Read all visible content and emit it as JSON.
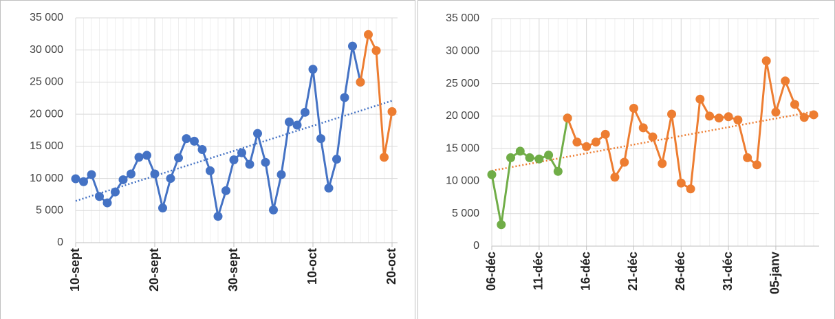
{
  "chart_data": [
    {
      "type": "line",
      "categories": [
        "10-sept",
        null,
        null,
        null,
        null,
        null,
        null,
        null,
        null,
        null,
        "20-sept",
        null,
        null,
        null,
        null,
        null,
        null,
        null,
        null,
        null,
        "30-sept",
        null,
        null,
        null,
        null,
        null,
        null,
        null,
        null,
        null,
        "10-oct",
        null,
        null,
        null,
        null,
        null,
        null,
        null,
        null,
        null,
        "20-oct"
      ],
      "series": [
        {
          "color": "#4472c4",
          "values": [
            9950,
            9500,
            10600,
            7200,
            6200,
            7900,
            9800,
            10700,
            13300,
            13600,
            10700,
            5400,
            10000,
            13200,
            16200,
            15800,
            14500,
            11200,
            4100,
            8100,
            12900,
            14000,
            12200,
            17000,
            12500,
            5100,
            10600,
            18800,
            18300,
            20300,
            27000,
            16200,
            8500,
            13000,
            22600,
            30600,
            25000,
            null,
            null,
            null,
            null
          ]
        },
        {
          "color": "#ed7d31",
          "values": [
            null,
            null,
            null,
            null,
            null,
            null,
            null,
            null,
            null,
            null,
            null,
            null,
            null,
            null,
            null,
            null,
            null,
            null,
            null,
            null,
            null,
            null,
            null,
            null,
            null,
            null,
            null,
            null,
            null,
            null,
            null,
            null,
            null,
            null,
            null,
            null,
            25000,
            32400,
            29900,
            13300,
            20400
          ]
        }
      ],
      "trendline": {
        "color": "#4472c4",
        "values": [
          6500,
          22100
        ]
      },
      "ylim": [
        0,
        35000
      ],
      "yticks": [
        {
          "value": 0,
          "label": "0"
        },
        {
          "value": 5000,
          "label": "5 000"
        },
        {
          "value": 10000,
          "label": "10 000"
        },
        {
          "value": 15000,
          "label": "15 000"
        },
        {
          "value": 20000,
          "label": "20 000"
        },
        {
          "value": 25000,
          "label": "25 000"
        },
        {
          "value": 30000,
          "label": "30 000"
        },
        {
          "value": 35000,
          "label": "35 000"
        }
      ],
      "grid": true
    },
    {
      "type": "line",
      "categories": [
        "06-déc",
        null,
        null,
        null,
        null,
        "11-déc",
        null,
        null,
        null,
        null,
        "16-déc",
        null,
        null,
        null,
        null,
        "21-déc",
        null,
        null,
        null,
        null,
        "26-déc",
        null,
        null,
        null,
        null,
        "31-déc",
        null,
        null,
        null,
        null,
        "05-janv",
        null,
        null,
        null,
        null
      ],
      "series": [
        {
          "color": "#70ad47",
          "values": [
            11000,
            3300,
            13600,
            14600,
            13600,
            13400,
            14000,
            11500,
            19700,
            null,
            null,
            null,
            null,
            null,
            null,
            null,
            null,
            null,
            null,
            null,
            null,
            null,
            null,
            null,
            null,
            null,
            null,
            null,
            null,
            null,
            null,
            null,
            null,
            null,
            null
          ]
        },
        {
          "color": "#ed7d31",
          "values": [
            null,
            null,
            null,
            null,
            null,
            null,
            null,
            null,
            19700,
            16000,
            15300,
            16000,
            17200,
            10600,
            12900,
            21200,
            18200,
            16800,
            12700,
            20300,
            9700,
            8800,
            22600,
            20000,
            19700,
            19900,
            19400,
            13600,
            12500,
            28500,
            20600,
            25400,
            21800,
            19800,
            20200
          ]
        }
      ],
      "trendline": {
        "color": "#ed7d31",
        "values": [
          11600,
          20700
        ]
      },
      "ylim": [
        0,
        35000
      ],
      "yticks": [
        {
          "value": 0,
          "label": "0"
        },
        {
          "value": 5000,
          "label": "5 000"
        },
        {
          "value": 10000,
          "label": "10 000"
        },
        {
          "value": 15000,
          "label": "15 000"
        },
        {
          "value": 20000,
          "label": "20 000"
        },
        {
          "value": 25000,
          "label": "25 000"
        },
        {
          "value": 30000,
          "label": "30 000"
        },
        {
          "value": 35000,
          "label": "35 000"
        }
      ],
      "grid": true
    }
  ]
}
